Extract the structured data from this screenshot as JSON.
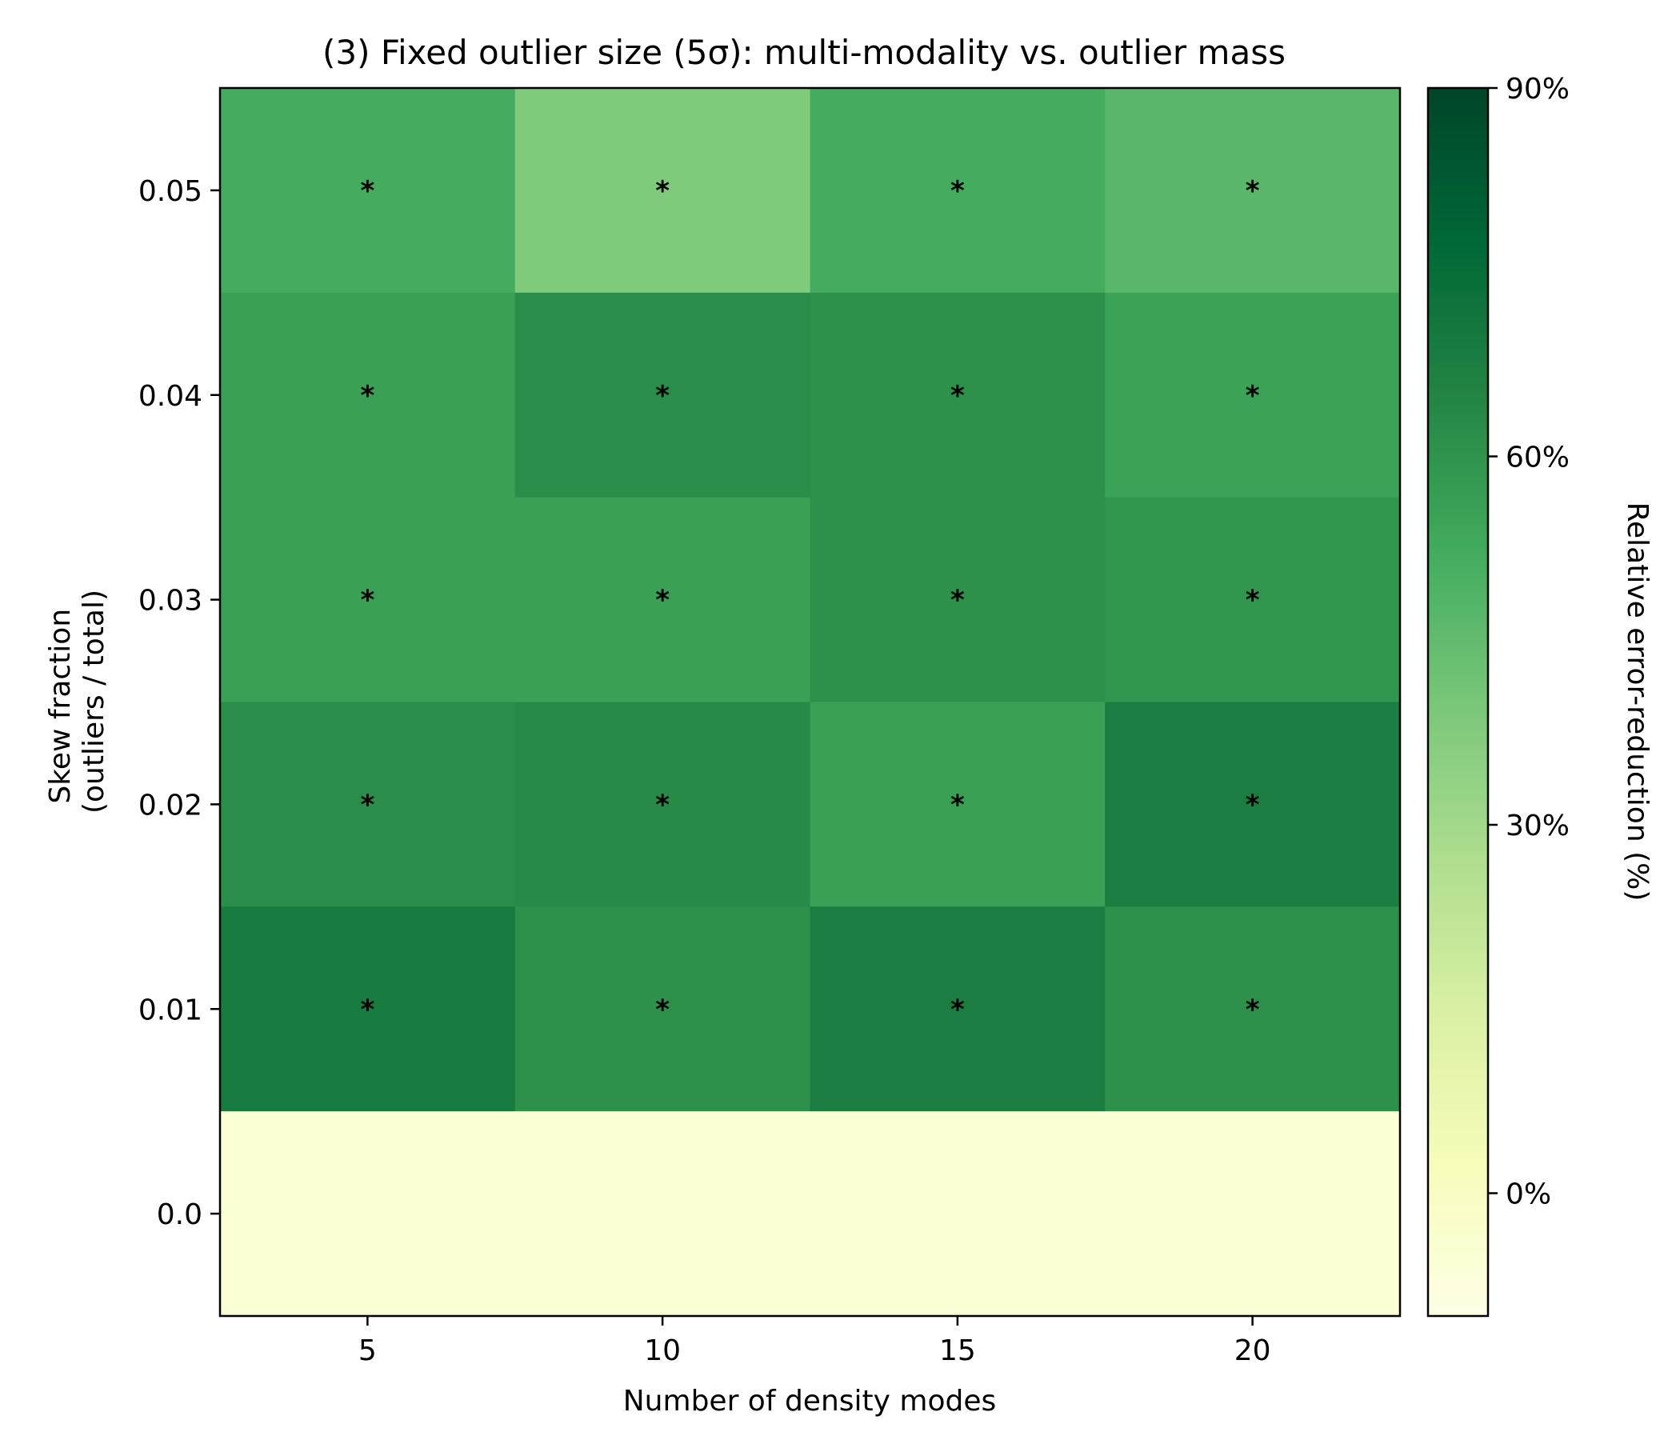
{
  "chart_data": {
    "type": "heatmap",
    "title": "(3)  Fixed outlier size (5σ): multi-modality vs. outlier mass",
    "xlabel": "Number of density modes",
    "ylabel": [
      "Skew fraction",
      "(outliers / total)"
    ],
    "x_categories": [
      "5",
      "10",
      "15",
      "20"
    ],
    "y_categories": [
      "0.05",
      "0.04",
      "0.03",
      "0.02",
      "0.01",
      "0.0"
    ],
    "values": [
      [
        52,
        38,
        52,
        47
      ],
      [
        56,
        62,
        61,
        55
      ],
      [
        56,
        56,
        61,
        59
      ],
      [
        62,
        63,
        56,
        68
      ],
      [
        69,
        61,
        68,
        61
      ],
      [
        -5,
        -5,
        -5,
        -5
      ]
    ],
    "significance_marker": "*",
    "marked_cells": [
      [
        true,
        true,
        true,
        true
      ],
      [
        true,
        true,
        true,
        true
      ],
      [
        true,
        true,
        true,
        true
      ],
      [
        true,
        true,
        true,
        true
      ],
      [
        true,
        true,
        true,
        true
      ],
      [
        false,
        false,
        false,
        false
      ]
    ],
    "colorbar": {
      "label": "Relative error-reduction (%)",
      "range": [
        -10,
        90
      ],
      "ticks": [
        0,
        30,
        60,
        90
      ],
      "tick_labels": [
        "0%",
        "30%",
        "60%",
        "90%"
      ],
      "colormap": "YlGn",
      "colormap_stops": [
        "#ffffe5",
        "#f7fcb9",
        "#d9f0a3",
        "#addd8e",
        "#78c679",
        "#41ab5d",
        "#238443",
        "#006837",
        "#004529"
      ]
    },
    "grid": false
  }
}
